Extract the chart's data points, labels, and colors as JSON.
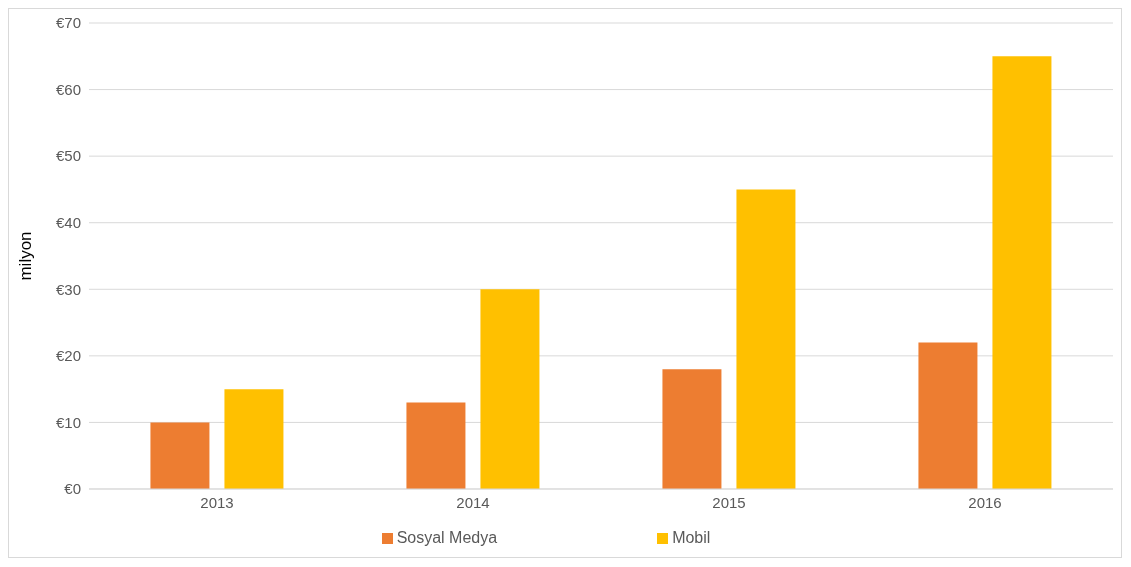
{
  "chart_data": {
    "type": "bar",
    "ylabel": "milyon",
    "categories": [
      "2013",
      "2014",
      "2015",
      "2016"
    ],
    "series": [
      {
        "name": "Sosyal Medya",
        "color": "#ed7d31",
        "values": [
          10,
          13,
          18,
          22
        ]
      },
      {
        "name": "Mobil",
        "color": "#ffc000",
        "values": [
          15,
          30,
          45,
          65
        ]
      }
    ],
    "ylim": [
      0,
      70
    ],
    "yticks": [
      {
        "value": 0,
        "label": "€0"
      },
      {
        "value": 10,
        "label": "€10"
      },
      {
        "value": 20,
        "label": "€20"
      },
      {
        "value": 30,
        "label": "€30"
      },
      {
        "value": 40,
        "label": "€40"
      },
      {
        "value": 50,
        "label": "€50"
      },
      {
        "value": 60,
        "label": "€60"
      },
      {
        "value": 70,
        "label": "€70"
      }
    ],
    "grid": "y",
    "legend": "bottom"
  }
}
